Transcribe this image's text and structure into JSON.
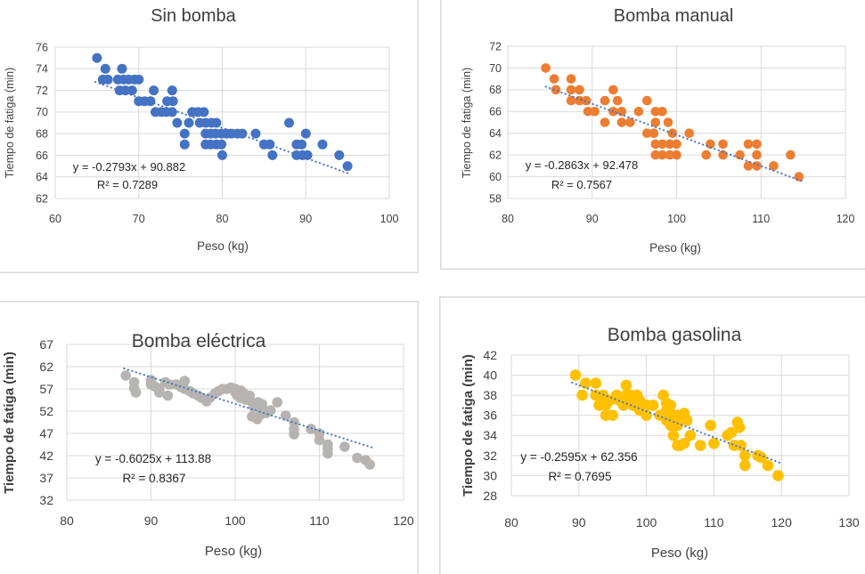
{
  "page": {
    "background": "#FFFFFF",
    "panel_border_color": "#D9D9D9",
    "gridline_color": "#D9D9D9",
    "text_color": "#404040",
    "title_color": "#3E3E3E",
    "equation_color": "#262626",
    "trendline_color": "#4472C4"
  },
  "chart_data": [
    {
      "type": "scatter",
      "title": "Sin bomba",
      "xlabel": "Peso (kg)",
      "ylabel": "Tiempo de fatiga (min)",
      "xlim": [
        60,
        100
      ],
      "xtick_step": 10,
      "ylim": [
        62,
        76
      ],
      "ytick_step": 2,
      "grid": true,
      "legend": false,
      "point_color": "#4472C4",
      "trendline": {
        "equation": "y = -0.2793x + 90.882",
        "r2": "R² = 0.7289",
        "slope": -0.2793,
        "intercept": 90.882,
        "x_start": 64.8,
        "x_end": 95.2,
        "style": "dotted",
        "color": "#4472C4"
      },
      "points": [
        [
          65,
          75
        ],
        [
          66,
          74
        ],
        [
          65.7,
          73
        ],
        [
          66.3,
          73
        ],
        [
          68,
          74
        ],
        [
          67.5,
          73
        ],
        [
          68.2,
          73
        ],
        [
          68.8,
          73
        ],
        [
          69.5,
          73
        ],
        [
          70,
          73
        ],
        [
          67.7,
          72
        ],
        [
          68.4,
          72
        ],
        [
          69.2,
          72
        ],
        [
          71.8,
          72
        ],
        [
          74,
          72
        ],
        [
          70,
          71
        ],
        [
          70.7,
          71
        ],
        [
          71.4,
          71
        ],
        [
          73.4,
          71
        ],
        [
          74.1,
          71
        ],
        [
          72,
          70
        ],
        [
          72.7,
          70
        ],
        [
          73.3,
          70
        ],
        [
          74,
          70
        ],
        [
          76.4,
          70
        ],
        [
          77.1,
          70
        ],
        [
          77.8,
          70
        ],
        [
          74.6,
          69
        ],
        [
          76,
          69
        ],
        [
          77.3,
          69
        ],
        [
          78,
          69
        ],
        [
          78.7,
          69
        ],
        [
          79.3,
          69
        ],
        [
          88,
          69
        ],
        [
          75.5,
          68
        ],
        [
          78,
          68
        ],
        [
          78.6,
          68
        ],
        [
          79.2,
          68
        ],
        [
          79.9,
          68
        ],
        [
          80.5,
          68
        ],
        [
          81.1,
          68
        ],
        [
          81.8,
          68
        ],
        [
          82.4,
          68
        ],
        [
          84,
          68
        ],
        [
          90,
          68
        ],
        [
          75.5,
          67
        ],
        [
          78,
          67
        ],
        [
          78.6,
          67
        ],
        [
          79.3,
          67
        ],
        [
          79.9,
          67
        ],
        [
          85,
          67
        ],
        [
          85.7,
          67
        ],
        [
          88.9,
          67
        ],
        [
          89.5,
          67
        ],
        [
          92,
          67
        ],
        [
          80,
          66
        ],
        [
          86,
          66
        ],
        [
          88.9,
          66
        ],
        [
          89.6,
          66
        ],
        [
          90.2,
          66
        ],
        [
          94,
          66
        ],
        [
          95,
          65
        ]
      ]
    },
    {
      "type": "scatter",
      "title": "Bomba manual",
      "xlabel": "Peso (kg)",
      "ylabel": "Tiempo de fatiga (min)",
      "xlim": [
        80,
        120
      ],
      "xtick_step": 10,
      "ylim": [
        58,
        72
      ],
      "ytick_step": 2,
      "grid": true,
      "legend": false,
      "point_color": "#ED7D31",
      "trendline": {
        "equation": "y = -0.2863x + 92.478",
        "r2": "R² = 0.7567",
        "slope": -0.2863,
        "intercept": 92.478,
        "x_start": 84.5,
        "x_end": 114.8,
        "style": "dotted",
        "color": "#4472C4"
      },
      "points": [
        [
          84.5,
          70
        ],
        [
          85.5,
          69
        ],
        [
          87.5,
          69
        ],
        [
          85.7,
          68
        ],
        [
          87.5,
          68
        ],
        [
          88.5,
          68
        ],
        [
          92.5,
          68
        ],
        [
          87.5,
          67
        ],
        [
          88.5,
          67
        ],
        [
          89.3,
          67
        ],
        [
          91.5,
          67
        ],
        [
          93,
          67
        ],
        [
          96.5,
          67
        ],
        [
          89.5,
          66
        ],
        [
          90.3,
          66
        ],
        [
          92.5,
          66
        ],
        [
          93.5,
          66
        ],
        [
          95.5,
          66
        ],
        [
          97.5,
          66
        ],
        [
          98.3,
          66
        ],
        [
          91.5,
          65
        ],
        [
          93.5,
          65
        ],
        [
          94.5,
          65
        ],
        [
          97.5,
          65
        ],
        [
          99,
          65
        ],
        [
          96.5,
          64
        ],
        [
          97.3,
          64
        ],
        [
          99.5,
          64
        ],
        [
          101.5,
          64
        ],
        [
          97.5,
          63
        ],
        [
          98.3,
          63
        ],
        [
          99.2,
          63
        ],
        [
          100,
          63
        ],
        [
          104,
          63
        ],
        [
          105.5,
          63
        ],
        [
          108.5,
          63
        ],
        [
          109.5,
          63
        ],
        [
          97.5,
          62
        ],
        [
          98.3,
          62
        ],
        [
          99.2,
          62
        ],
        [
          100,
          62
        ],
        [
          103.5,
          62
        ],
        [
          105.5,
          62
        ],
        [
          107.5,
          62
        ],
        [
          109.5,
          62
        ],
        [
          113.5,
          62
        ],
        [
          108.5,
          61
        ],
        [
          109.5,
          61
        ],
        [
          111.5,
          61
        ],
        [
          114.5,
          60
        ]
      ]
    },
    {
      "type": "scatter",
      "title": "Bomba eléctrica",
      "xlabel": "Peso (kg)",
      "ylabel": "Tiempo de fatiga (min)",
      "xlim": [
        80,
        120
      ],
      "xtick_step": 10,
      "ylim": [
        32,
        67
      ],
      "ytick_step": 5,
      "grid": true,
      "legend": false,
      "point_color": "#B7B3B0",
      "trendline": {
        "equation": "y = -0.6025x + 113.88",
        "r2": "R² = 0.8367",
        "slope": -0.6025,
        "intercept": 113.88,
        "x_start": 86.8,
        "x_end": 116.5,
        "style": "dotted",
        "color": "#4472C4"
      },
      "points": [
        [
          87,
          60
        ],
        [
          88,
          58.5
        ],
        [
          88,
          57.2
        ],
        [
          88.2,
          56.2
        ],
        [
          90,
          59
        ],
        [
          90,
          58
        ],
        [
          90.5,
          57.5
        ],
        [
          91,
          57
        ],
        [
          91,
          56.2
        ],
        [
          91.7,
          58.5
        ],
        [
          92.2,
          58
        ],
        [
          92,
          55.5
        ],
        [
          93,
          58
        ],
        [
          93.5,
          57.5
        ],
        [
          94,
          58.8
        ],
        [
          94,
          57
        ],
        [
          94.6,
          56.5
        ],
        [
          95,
          56
        ],
        [
          95.6,
          55.5
        ],
        [
          96,
          55
        ],
        [
          96.6,
          54.2
        ],
        [
          97,
          55
        ],
        [
          97.6,
          56
        ],
        [
          98,
          56.5
        ],
        [
          98.5,
          57
        ],
        [
          99,
          57
        ],
        [
          99.5,
          57.3
        ],
        [
          100,
          57
        ],
        [
          100,
          56.3
        ],
        [
          100.2,
          55.6
        ],
        [
          100.7,
          56.6
        ],
        [
          101,
          56
        ],
        [
          100.6,
          55
        ],
        [
          101.2,
          54.6
        ],
        [
          101.7,
          55.5
        ],
        [
          102,
          54
        ],
        [
          102.2,
          53
        ],
        [
          102,
          50.8
        ],
        [
          102.7,
          54
        ],
        [
          102.8,
          53
        ],
        [
          102.6,
          50.2
        ],
        [
          103.2,
          53.6
        ],
        [
          103.2,
          52.6
        ],
        [
          103,
          51.2
        ],
        [
          103.7,
          51.6
        ],
        [
          104.2,
          52.2
        ],
        [
          105,
          54
        ],
        [
          106,
          51
        ],
        [
          107,
          49.5
        ],
        [
          107,
          48
        ],
        [
          107,
          46.8
        ],
        [
          109,
          48
        ],
        [
          110,
          47
        ],
        [
          110,
          45.5
        ],
        [
          111,
          44.5
        ],
        [
          111,
          43.5
        ],
        [
          111,
          42.5
        ],
        [
          113,
          44
        ],
        [
          114.5,
          41.5
        ],
        [
          115.5,
          41
        ],
        [
          116,
          40
        ]
      ]
    },
    {
      "type": "scatter",
      "title": "Bomba gasolina",
      "xlabel": "Peso (kg)",
      "ylabel": "Tiempo de fatiga (min)",
      "xlim": [
        80,
        130
      ],
      "xtick_step": 10,
      "ylim": [
        28,
        42
      ],
      "ytick_step": 2,
      "grid": true,
      "legend": false,
      "point_color": "#FFC000",
      "trendline": {
        "equation": "y = -0.2595x + 62.356",
        "r2": "R² = 0.7695",
        "slope": -0.2595,
        "intercept": 62.356,
        "x_start": 89.0,
        "x_end": 119.8,
        "style": "dotted",
        "color": "#4472C4"
      },
      "points": [
        [
          89.5,
          40
        ],
        [
          90.5,
          38
        ],
        [
          91,
          39.2
        ],
        [
          92.5,
          39.2
        ],
        [
          92.5,
          38
        ],
        [
          93,
          37
        ],
        [
          93.6,
          38
        ],
        [
          94,
          37
        ],
        [
          94,
          36
        ],
        [
          94.6,
          37.5
        ],
        [
          95,
          36
        ],
        [
          95.6,
          38
        ],
        [
          96,
          37.5
        ],
        [
          96.6,
          37
        ],
        [
          97,
          39
        ],
        [
          97,
          38
        ],
        [
          97.6,
          38
        ],
        [
          98,
          37.5
        ],
        [
          98,
          37
        ],
        [
          98.6,
          38
        ],
        [
          99,
          37.5
        ],
        [
          99,
          36.5
        ],
        [
          99.6,
          37
        ],
        [
          100,
          37
        ],
        [
          100,
          36
        ],
        [
          101,
          37
        ],
        [
          102,
          36
        ],
        [
          102.5,
          38
        ],
        [
          103,
          37.2
        ],
        [
          103,
          36.5
        ],
        [
          103,
          35.5
        ],
        [
          103.6,
          37
        ],
        [
          103.6,
          36
        ],
        [
          103.6,
          35
        ],
        [
          104,
          36
        ],
        [
          104,
          34
        ],
        [
          104.6,
          36
        ],
        [
          104.6,
          35
        ],
        [
          104.6,
          33
        ],
        [
          105,
          36
        ],
        [
          105,
          33
        ],
        [
          105.6,
          36.2
        ],
        [
          105.6,
          33.2
        ],
        [
          106,
          35.5
        ],
        [
          106.5,
          34
        ],
        [
          108,
          33
        ],
        [
          109.5,
          35
        ],
        [
          110,
          33.2
        ],
        [
          112,
          34
        ],
        [
          112.6,
          34.3
        ],
        [
          113,
          33
        ],
        [
          113.5,
          35.3
        ],
        [
          113.8,
          34.8
        ],
        [
          114,
          33
        ],
        [
          114.6,
          32
        ],
        [
          114.6,
          31
        ],
        [
          116.5,
          32
        ],
        [
          117,
          31.8
        ],
        [
          118,
          31
        ],
        [
          119.5,
          30
        ]
      ]
    }
  ]
}
